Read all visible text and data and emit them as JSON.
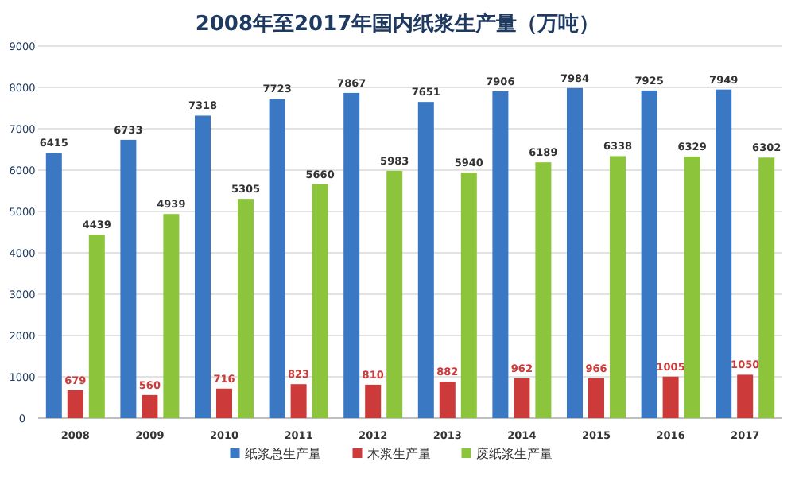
{
  "chart_data": {
    "type": "bar",
    "title": "2008年至2017年国内纸浆生产量（万吨）",
    "categories": [
      "2008",
      "2009",
      "2010",
      "2011",
      "2012",
      "2013",
      "2014",
      "2015",
      "2016",
      "2017"
    ],
    "series": [
      {
        "name": "纸浆总生产量",
        "color": "#3b78c4",
        "values": [
          6415,
          6733,
          7318,
          7723,
          7867,
          7651,
          7906,
          7984,
          7925,
          7949
        ]
      },
      {
        "name": "木浆生产量",
        "color": "#cc3a3a",
        "values": [
          679,
          560,
          716,
          823,
          810,
          882,
          962,
          966,
          1005,
          1050
        ]
      },
      {
        "name": "废纸浆生产量",
        "color": "#8cc43c",
        "values": [
          4439,
          4939,
          5305,
          5660,
          5983,
          5940,
          6189,
          6338,
          6329,
          6302
        ]
      }
    ],
    "ylim": [
      0,
      9000
    ],
    "yticks": [
      0,
      1000,
      2000,
      3000,
      4000,
      5000,
      6000,
      7000,
      8000,
      9000
    ],
    "grid": "y",
    "legend": "bottom",
    "data_labels": true
  }
}
